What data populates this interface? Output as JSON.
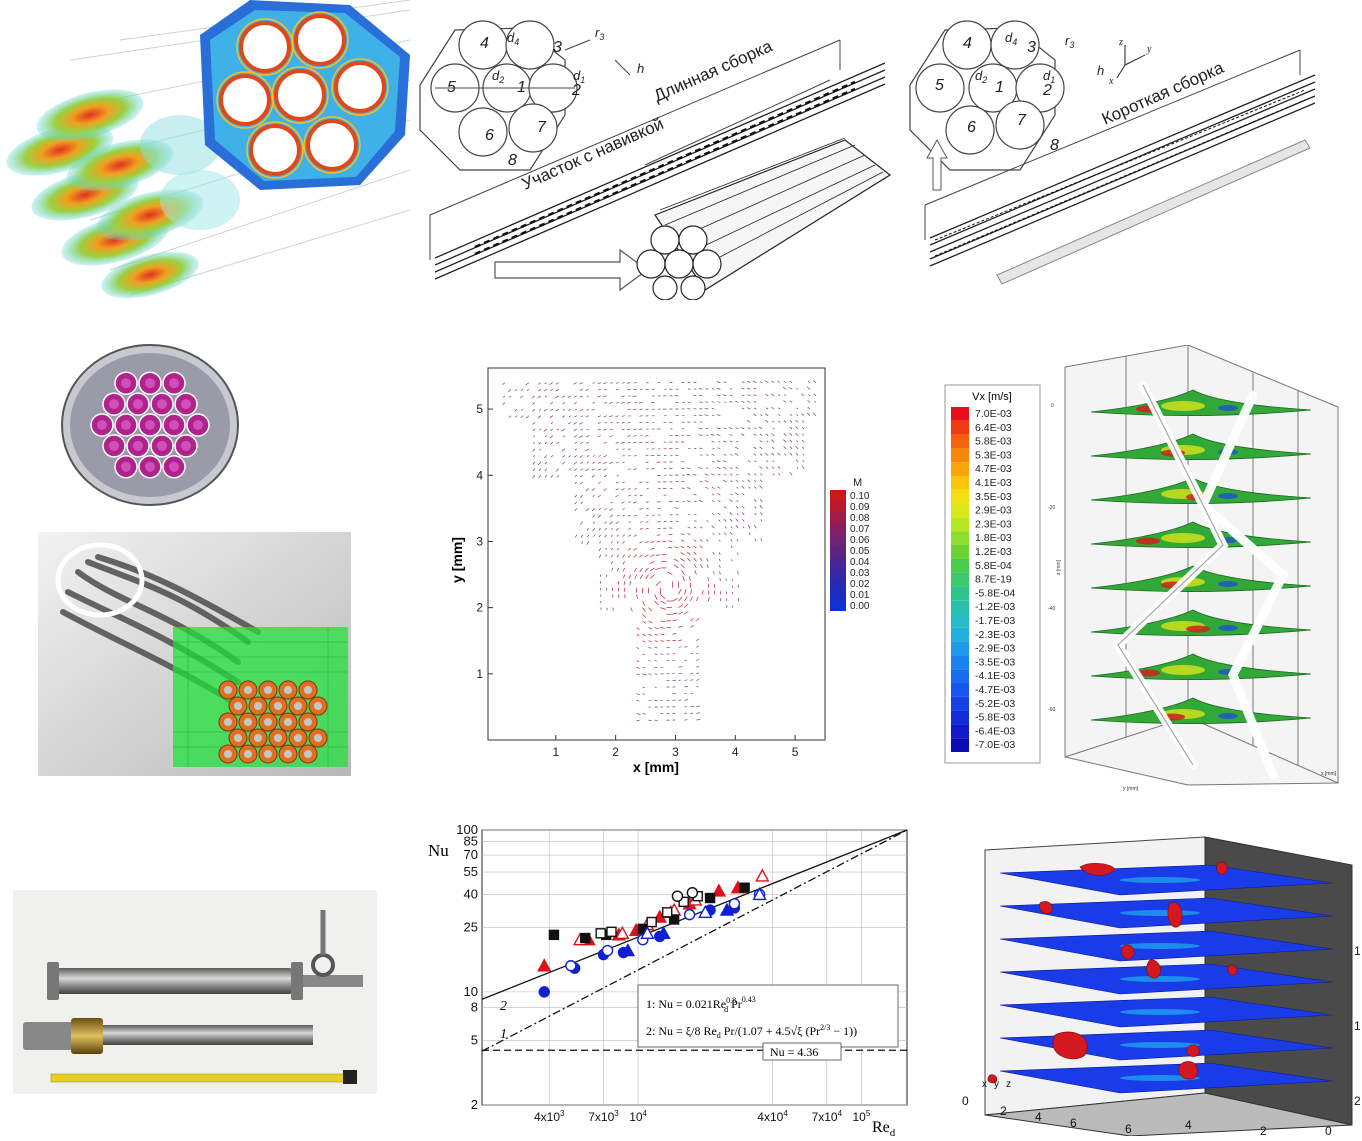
{
  "diagram_long": {
    "title_long": "Длинная сборка",
    "title_wound": "Участок с навивкой",
    "pin_numbers": [
      "1",
      "2",
      "3",
      "4",
      "5",
      "6",
      "7"
    ],
    "dims": {
      "d1": "d",
      "d1_sub": "1",
      "d2": "d",
      "d2_sub": "2",
      "d4": "d",
      "d4_sub": "4",
      "r3": "r",
      "r3_sub": "3",
      "h": "h"
    },
    "wire": "8"
  },
  "diagram_short": {
    "title_short": "Короткая сборка",
    "pin_numbers": [
      "1",
      "2",
      "3",
      "4",
      "5",
      "6",
      "7"
    ],
    "dims": {
      "d1": "d",
      "d1_sub": "1",
      "d2": "d",
      "d2_sub": "2",
      "d4": "d",
      "d4_sub": "4",
      "r3": "r",
      "r3_sub": "3",
      "h": "h"
    },
    "wire": "8",
    "axes": {
      "x": "x",
      "y": "y",
      "z": "z"
    }
  },
  "vector_plot": {
    "xlabel": "x [mm]",
    "ylabel": "y [mm]",
    "xticks": [
      "1",
      "2",
      "3",
      "4",
      "5"
    ],
    "yticks": [
      "1",
      "2",
      "3",
      "4",
      "5"
    ],
    "legend_title": "M",
    "legend_values": [
      "0.10",
      "0.09",
      "0.08",
      "0.07",
      "0.06",
      "0.05",
      "0.04",
      "0.03",
      "0.02",
      "0.01",
      "0.00"
    ]
  },
  "vx_plot": {
    "legend_title": "Vx [m/s]",
    "legend_values": [
      "7.0E-03",
      "6.4E-03",
      "5.8E-03",
      "5.3E-03",
      "4.7E-03",
      "4.1E-03",
      "3.5E-03",
      "2.9E-03",
      "2.3E-03",
      "1.8E-03",
      "1.2E-03",
      "5.8E-04",
      "8.7E-19",
      "-5.8E-04",
      "-1.2E-03",
      "-1.7E-03",
      "-2.3E-03",
      "-2.9E-03",
      "-3.5E-03",
      "-4.1E-03",
      "-4.7E-03",
      "-5.2E-03",
      "-5.8E-03",
      "-6.4E-03",
      "-7.0E-03"
    ],
    "legend_colors": [
      "#e8101a",
      "#f03a12",
      "#f5620e",
      "#f8870c",
      "#fba50b",
      "#fcc40b",
      "#f5de10",
      "#d8e818",
      "#b4e622",
      "#8edc2c",
      "#6cd236",
      "#4ccc4c",
      "#3cc86c",
      "#30c48c",
      "#2ac0aa",
      "#26bcc8",
      "#22b0de",
      "#1e9ae8",
      "#1a84ee",
      "#186cf0",
      "#1656ee",
      "#1440e6",
      "#122cd8",
      "#1018c8",
      "#0c0cb4"
    ],
    "axis_z": "z [mm]",
    "axis_y": "y [mm]",
    "axis_x": "x [mm]",
    "zticks": [
      "0",
      "-20",
      "-40",
      "-60"
    ]
  },
  "nu_chart": {
    "ylabel": "Nu",
    "xlabel": "Re",
    "xlabel_sub": "d",
    "formula1": "1: Nu = 0.021Re",
    "formula1_sup": "0.8",
    "formula1_sub": "d",
    "formula1_tail": " Pr",
    "formula1_tail_sup": "0.43",
    "formula2": "2: Nu = ξ/8 Re",
    "formula2_sub": "d",
    "formula2_tail": " Pr/(1.07 + 4.5√ξ (Pr",
    "formula2_sup": "2/3",
    "formula2_end": " − 1))",
    "nu_const": "Nu = 4.36",
    "curve1_label": "1",
    "curve2_label": "2"
  },
  "chart_data": {
    "type": "scatter",
    "xlabel": "Re_d",
    "ylabel": "Nu",
    "log_x": true,
    "log_y": true,
    "xlim": [
      2000,
      160000
    ],
    "ylim": [
      2,
      100
    ],
    "xticks": [
      "4x10",
      "7x10",
      "10",
      "4x10",
      "7x10",
      "10"
    ],
    "xticks_exp": [
      "3",
      "3",
      "4",
      "4",
      "4",
      "5"
    ],
    "xtick_values": [
      4000,
      7000,
      10000,
      40000,
      70000,
      100000
    ],
    "yticks": [
      "2",
      "5",
      "8",
      "10",
      "25",
      "40",
      "55",
      "70",
      "85",
      "100"
    ],
    "ytick_values": [
      2,
      5,
      8,
      10,
      25,
      40,
      55,
      70,
      85,
      100
    ],
    "series": [
      {
        "marker": "filled-triangle",
        "color": "#e0101a",
        "points": [
          [
            3800,
            14.5
          ],
          [
            6000,
            21
          ],
          [
            8200,
            22.5
          ],
          [
            9800,
            24
          ],
          [
            12500,
            29
          ],
          [
            14000,
            31
          ],
          [
            17000,
            35
          ],
          [
            23000,
            42
          ],
          [
            28000,
            44
          ]
        ]
      },
      {
        "marker": "open-triangle",
        "color": "#e0101a",
        "points": [
          [
            5500,
            21
          ],
          [
            8500,
            23
          ],
          [
            11000,
            26
          ],
          [
            14500,
            32
          ],
          [
            18000,
            37
          ],
          [
            36000,
            52
          ]
        ]
      },
      {
        "marker": "filled-square",
        "color": "#111111",
        "points": [
          [
            4200,
            22.5
          ],
          [
            5800,
            21.5
          ],
          [
            7200,
            22.5
          ],
          [
            10500,
            24.5
          ],
          [
            14500,
            28
          ],
          [
            21000,
            38
          ],
          [
            30000,
            44
          ]
        ]
      },
      {
        "marker": "open-square",
        "color": "#111111",
        "points": [
          [
            6800,
            23
          ],
          [
            7600,
            23.5
          ],
          [
            11500,
            27
          ],
          [
            13500,
            31
          ],
          [
            16000,
            36
          ],
          [
            18500,
            39
          ]
        ]
      },
      {
        "marker": "open-circle",
        "color": "#111111",
        "points": [
          [
            15000,
            39
          ],
          [
            17500,
            41
          ]
        ]
      },
      {
        "marker": "filled-circle",
        "color": "#1020d0",
        "points": [
          [
            3800,
            10
          ],
          [
            5200,
            14
          ],
          [
            7000,
            17
          ],
          [
            8600,
            17.5
          ],
          [
            12500,
            22
          ],
          [
            21000,
            32
          ],
          [
            27000,
            33
          ]
        ]
      },
      {
        "marker": "open-circle",
        "color": "#1020d0",
        "points": [
          [
            5000,
            14.5
          ],
          [
            7300,
            18
          ],
          [
            10500,
            21
          ],
          [
            17000,
            30
          ],
          [
            27000,
            35
          ],
          [
            35000,
            40
          ]
        ]
      },
      {
        "marker": "open-triangle",
        "color": "#1020d0",
        "points": [
          [
            11000,
            23
          ],
          [
            20000,
            31
          ],
          [
            35000,
            40
          ]
        ]
      },
      {
        "marker": "filled-triangle",
        "color": "#1020d0",
        "points": [
          [
            9000,
            18
          ],
          [
            13000,
            23
          ],
          [
            25000,
            32
          ]
        ]
      }
    ],
    "lines": [
      {
        "name": "1",
        "style": "dash-dot",
        "points": [
          [
            2000,
            4.3
          ],
          [
            160000,
            100
          ]
        ]
      },
      {
        "name": "2",
        "style": "solid",
        "points": [
          [
            2000,
            9
          ],
          [
            160000,
            100
          ]
        ]
      },
      {
        "name": "Nu = 4.36",
        "style": "dashed",
        "points": [
          [
            2000,
            4.36
          ],
          [
            160000,
            4.36
          ]
        ]
      }
    ]
  },
  "bubble_plot": {
    "xticks": [
      "0",
      "2",
      "4",
      "6"
    ],
    "yticks": [
      "6",
      "4",
      "2",
      "0"
    ],
    "axis_labels": [
      "x",
      "y",
      "z"
    ],
    "zticks": [
      "1",
      "1",
      "2"
    ]
  }
}
